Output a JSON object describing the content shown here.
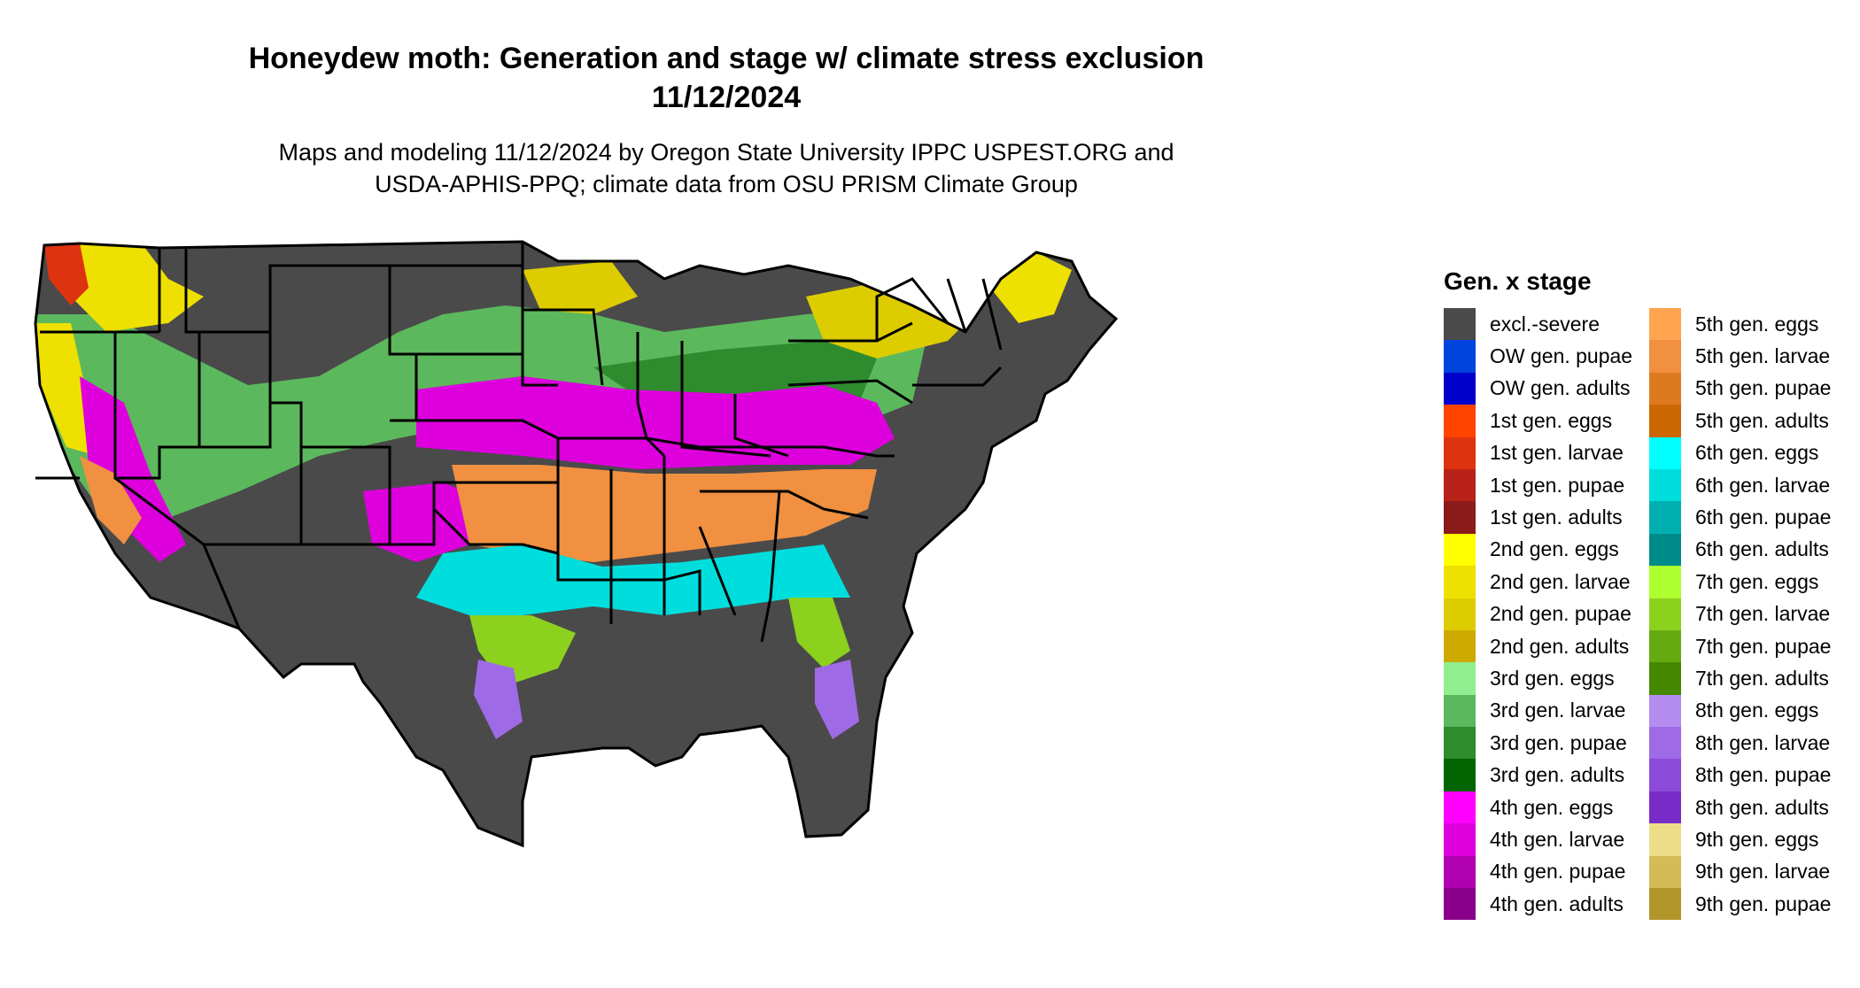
{
  "header": {
    "title_line1": "Honeydew moth: Generation and stage w/ climate stress exclusion",
    "title_line2": "11/12/2024",
    "subtitle_line1": "Maps and modeling 11/12/2024 by Oregon State University IPPC USPEST.ORG and",
    "subtitle_line2": "USDA-APHIS-PPQ; climate data from OSU PRISM Climate Group"
  },
  "legend": {
    "title": "Gen. x stage",
    "items": [
      {
        "label": "excl.-severe",
        "color": "#4a4a4a"
      },
      {
        "label": "OW gen. pupae",
        "color": "#0044dd"
      },
      {
        "label": "OW gen. adults",
        "color": "#0000cc"
      },
      {
        "label": "1st gen. eggs",
        "color": "#ff4400"
      },
      {
        "label": "1st gen. larvae",
        "color": "#dd3311"
      },
      {
        "label": "1st gen. pupae",
        "color": "#b82218"
      },
      {
        "label": "1st gen. adults",
        "color": "#8b1a1a"
      },
      {
        "label": "2nd gen. eggs",
        "color": "#ffff00"
      },
      {
        "label": "2nd gen. larvae",
        "color": "#eee000"
      },
      {
        "label": "2nd gen. pupae",
        "color": "#ddcc00"
      },
      {
        "label": "2nd gen. adults",
        "color": "#ccaa00"
      },
      {
        "label": "3rd gen. eggs",
        "color": "#90ee90"
      },
      {
        "label": "3rd gen. larvae",
        "color": "#5cb85c"
      },
      {
        "label": "3rd gen. pupae",
        "color": "#2e8b2e"
      },
      {
        "label": "3rd gen. adults",
        "color": "#006400"
      },
      {
        "label": "4th gen. eggs",
        "color": "#ff00ff"
      },
      {
        "label": "4th gen. larvae",
        "color": "#dd00dd"
      },
      {
        "label": "4th gen. pupae",
        "color": "#b000b0"
      },
      {
        "label": "4th gen. adults",
        "color": "#8b008b"
      },
      {
        "label": "5th gen. eggs",
        "color": "#ffa54f"
      },
      {
        "label": "5th gen. larvae",
        "color": "#f09040"
      },
      {
        "label": "5th gen. pupae",
        "color": "#dd7a20"
      },
      {
        "label": "5th gen. adults",
        "color": "#cc6600"
      },
      {
        "label": "6th gen. eggs",
        "color": "#00ffff"
      },
      {
        "label": "6th gen. larvae",
        "color": "#00dddd"
      },
      {
        "label": "6th gen. pupae",
        "color": "#00b0b0"
      },
      {
        "label": "6th gen. adults",
        "color": "#008b8b"
      },
      {
        "label": "7th gen. eggs",
        "color": "#adff2f"
      },
      {
        "label": "7th gen. larvae",
        "color": "#8cd11e"
      },
      {
        "label": "7th gen. pupae",
        "color": "#66aa11"
      },
      {
        "label": "7th gen. adults",
        "color": "#448800"
      },
      {
        "label": "8th gen. eggs",
        "color": "#b48cf0"
      },
      {
        "label": "8th gen. larvae",
        "color": "#9f6ae6"
      },
      {
        "label": "8th gen. pupae",
        "color": "#8b4ad8"
      },
      {
        "label": "8th gen. adults",
        "color": "#7a2cc8"
      },
      {
        "label": "9th gen. eggs",
        "color": "#eedd88"
      },
      {
        "label": "9th gen. larvae",
        "color": "#d4bb55"
      },
      {
        "label": "9th gen. pupae",
        "color": "#b0962a"
      }
    ]
  }
}
